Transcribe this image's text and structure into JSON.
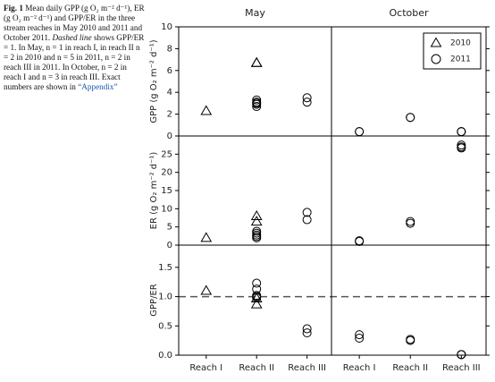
{
  "caption": {
    "label": "Fig. 1",
    "text1": "Mean daily GPP (g O₂ m⁻² d⁻¹), ER (g O₂ m⁻² d⁻¹) and GPP/ER in the three stream reaches in May 2010 and 2011 and October 2011.",
    "emphasis": "Dashed line",
    "text2": "shows GPP/ER = 1. In May, n = 1 in reach I, in reach II n = 2 in 2010 and n = 5 in 2011, n = 2 in reach III in 2011. In October, n = 2 in reach I and n = 3 in reach III. Exact numbers are shown in",
    "link": "“Appendix”"
  },
  "chart_data": {
    "type": "scatter",
    "columns": [
      "May",
      "October"
    ],
    "categories": [
      "Reach I",
      "Reach II",
      "Reach III"
    ],
    "series": [
      {
        "name": "2010",
        "marker": "triangle",
        "color": "#000000"
      },
      {
        "name": "2011",
        "marker": "circle",
        "color": "#000000"
      }
    ],
    "legend": "upper right",
    "reference_line": 1,
    "rows": [
      {
        "ylabel": "GPP (g O₂ m⁻² d⁻¹)",
        "ylim": [
          0,
          10
        ],
        "yticks": [
          0,
          2,
          4,
          6,
          8,
          10
        ],
        "data": [
          [
            [
              [
                2.3
              ],
              [
                6.7,
                6.7
              ],
              []
            ],
            [
              [],
              [
                3.3,
                3.1,
                3.0,
                2.9,
                2.7
              ],
              [
                3.5,
                3.1
              ]
            ]
          ],
          [
            [
              [],
              [],
              []
            ],
            [
              [
                0.4,
                0.4
              ],
              [
                1.7,
                1.7
              ],
              [
                0.4,
                0.4,
                0.4
              ]
            ]
          ]
        ]
      },
      {
        "ylabel": "ER (g O₂ m⁻² d⁻¹)",
        "ylim": [
          0,
          30
        ],
        "yticks": [
          0,
          5,
          10,
          15,
          20,
          25
        ],
        "data": [
          [
            [
              [
                2.0
              ],
              [
                8.0,
                6.5
              ],
              []
            ],
            [
              [],
              [
                3.8,
                3.3,
                2.8,
                2.4,
                2.0
              ],
              [
                9.0,
                7.0
              ]
            ]
          ],
          [
            [
              [],
              [],
              []
            ],
            [
              [
                1.2,
                1.0
              ],
              [
                6.5,
                6.0
              ],
              [
                27.5,
                27.0,
                26.7
              ]
            ]
          ]
        ]
      },
      {
        "ylabel": "GPP/ER",
        "ylim": [
          0,
          1.88
        ],
        "yticks": [
          {
            "value": 0,
            "label": "0.0"
          },
          {
            "value": 0.5,
            "label": "0.5"
          },
          {
            "value": 1,
            "label": "1.0"
          },
          {
            "value": 1.5,
            "label": "1.5"
          }
        ],
        "data": [
          [
            [
              [
                1.1
              ],
              [
                0.97,
                0.87
              ],
              []
            ],
            [
              [],
              [
                1.23,
                1.13,
                1.02,
                1.0,
                0.98
              ],
              [
                0.45,
                0.38
              ]
            ]
          ],
          [
            [
              [],
              [],
              []
            ],
            [
              [
                0.35,
                0.29
              ],
              [
                0.27,
                0.25
              ],
              [
                0.01,
                0.01,
                0.01
              ]
            ]
          ]
        ]
      }
    ]
  }
}
